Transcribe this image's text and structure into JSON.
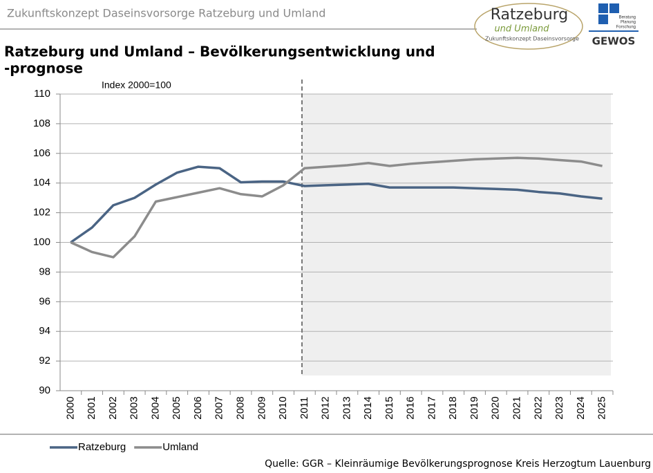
{
  "header": "Zukunftskonzept Daseinsvorsorge Ratzeburg und Umland",
  "logo": {
    "name": "Ratzeburg",
    "sub": "und Umland",
    "tagline": "Zukunftskonzept Daseinsvorsorge"
  },
  "logo2": {
    "lines": [
      "Beratung",
      "Planung",
      "Forschung"
    ],
    "name": "GEWOS"
  },
  "source": "Quelle: GGR – Kleinräumige Bevölkerungsprognose Kreis Herzogtum Lauenburg",
  "chart_data": {
    "type": "line",
    "title": [
      "Ratzeburg und Umland – Bevölkerungsentwicklung und",
      "-prognose"
    ],
    "annotation": "Index 2000=100",
    "categories": [
      "2000",
      "2001",
      "2002",
      "2003",
      "2004",
      "2005",
      "2006",
      "2007",
      "2008",
      "2009",
      "2010",
      "2011",
      "2012",
      "2013",
      "2014",
      "2015",
      "2016",
      "2017",
      "2018",
      "2019",
      "2020",
      "2021",
      "2022",
      "2023",
      "2024",
      "2025"
    ],
    "series": [
      {
        "name": "Ratzeburg",
        "color": "#4a6484",
        "values": [
          100,
          101.0,
          102.5,
          103.0,
          103.9,
          104.7,
          105.1,
          105.0,
          104.05,
          104.1,
          104.1,
          103.8,
          103.85,
          103.9,
          103.95,
          103.7,
          103.7,
          103.7,
          103.7,
          103.65,
          103.6,
          103.55,
          103.4,
          103.3,
          103.1,
          102.95
        ]
      },
      {
        "name": "Umland",
        "color": "#8c8c8c",
        "values": [
          100,
          99.35,
          99.0,
          100.4,
          102.75,
          103.05,
          103.35,
          103.65,
          103.25,
          103.1,
          103.85,
          105.0,
          105.1,
          105.2,
          105.35,
          105.15,
          105.3,
          105.4,
          105.5,
          105.6,
          105.65,
          105.7,
          105.65,
          105.55,
          105.45,
          105.15
        ]
      }
    ],
    "ylim": [
      90,
      110
    ],
    "yticks": [
      90,
      92,
      94,
      96,
      98,
      100,
      102,
      104,
      106,
      108,
      110
    ],
    "grid": true,
    "legend": "bottom"
  }
}
